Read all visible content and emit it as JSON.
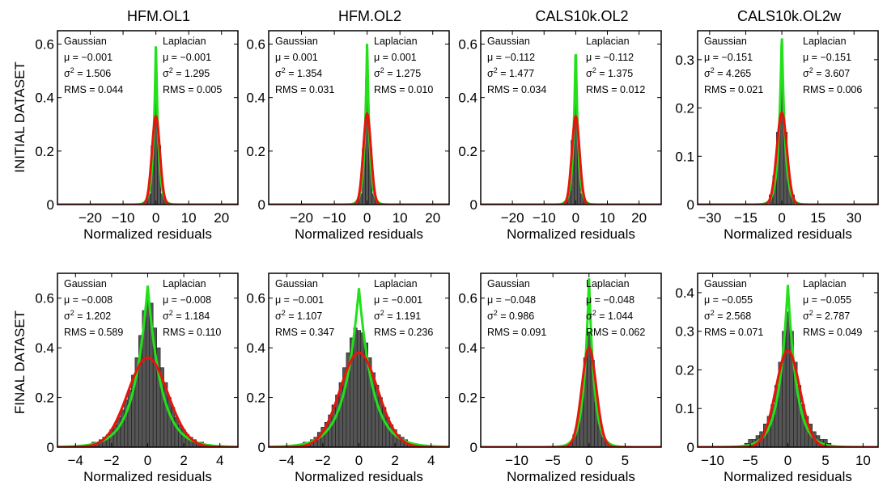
{
  "figure": {
    "column_titles": [
      "HFM.OL1",
      "HFM.OL2",
      "CALS10k.OL2",
      "CALS10k.OL2w"
    ],
    "row_labels": [
      "INITIAL DATASET",
      "FINAL DATASET"
    ],
    "xlabel": "Normalized residuals",
    "stat_labels": {
      "gaussian": "Gaussian",
      "laplacian": "Laplacian"
    },
    "colors": {
      "gaussian_curve": "#e8140c",
      "laplacian_curve": "#22e01a",
      "histogram_bars": "#555555",
      "axes": "#000000"
    }
  },
  "chart_data": [
    {
      "type": "bar",
      "row": "INITIAL DATASET",
      "column": "HFM.OL1",
      "title": "HFM.OL1",
      "xlabel": "Normalized residuals",
      "ylabel": "",
      "xlim": [
        -30,
        25
      ],
      "ylim": [
        0,
        0.65
      ],
      "xticks": [
        -20,
        -10,
        0,
        10,
        20
      ],
      "xtick_labels": [
        "−20",
        "−10",
        "0",
        "10",
        "20"
      ],
      "yticks": [
        0,
        0.2,
        0.4,
        0.6
      ],
      "ytick_labels": [
        "0",
        "0.2",
        "0.4",
        "0.6"
      ],
      "gaussian": {
        "mu": "μ = −0.001",
        "sigma2": "σ2 = 1.506",
        "rms": "RMS = 0.044"
      },
      "laplacian": {
        "mu": "μ = −0.001",
        "sigma2": "σ2 = 1.295",
        "rms": "RMS = 0.005"
      },
      "gaussian_peak": 0.33,
      "laplacian_peak": 0.61,
      "bar_width": 1.0,
      "histogram": [
        [
          -3,
          0.01
        ],
        [
          -2,
          0.04
        ],
        [
          -1,
          0.22
        ],
        [
          0,
          0.45
        ],
        [
          1,
          0.22
        ],
        [
          2,
          0.04
        ],
        [
          3,
          0.01
        ]
      ]
    },
    {
      "type": "bar",
      "row": "INITIAL DATASET",
      "column": "HFM.OL2",
      "title": "HFM.OL2",
      "xlabel": "Normalized residuals",
      "ylabel": "",
      "xlim": [
        -30,
        25
      ],
      "ylim": [
        0,
        0.65
      ],
      "xticks": [
        -20,
        -10,
        0,
        10,
        20
      ],
      "xtick_labels": [
        "−20",
        "−10",
        "0",
        "10",
        "20"
      ],
      "yticks": [
        0,
        0.2,
        0.4,
        0.6
      ],
      "ytick_labels": [
        "0",
        "0.2",
        "0.4",
        "0.6"
      ],
      "gaussian": {
        "mu": "μ = 0.001",
        "sigma2": "σ2 = 1.354",
        "rms": "RMS = 0.031"
      },
      "laplacian": {
        "mu": "μ = 0.001",
        "sigma2": "σ2 = 1.275",
        "rms": "RMS = 0.010"
      },
      "gaussian_peak": 0.34,
      "laplacian_peak": 0.62,
      "bar_width": 1.0,
      "histogram": [
        [
          -3,
          0.01
        ],
        [
          -2,
          0.04
        ],
        [
          -1,
          0.21
        ],
        [
          0,
          0.47
        ],
        [
          1,
          0.21
        ],
        [
          2,
          0.04
        ],
        [
          3,
          0.01
        ]
      ]
    },
    {
      "type": "bar",
      "row": "INITIAL DATASET",
      "column": "CALS10k.OL2",
      "title": "CALS10k.OL2",
      "xlabel": "Normalized residuals",
      "ylabel": "",
      "xlim": [
        -30,
        27
      ],
      "ylim": [
        0,
        0.65
      ],
      "xticks": [
        -20,
        -10,
        0,
        10,
        20
      ],
      "xtick_labels": [
        "−20",
        "−10",
        "0",
        "10",
        "20"
      ],
      "yticks": [
        0,
        0.2,
        0.4,
        0.6
      ],
      "ytick_labels": [
        "0",
        "0.2",
        "0.4",
        "0.6"
      ],
      "gaussian": {
        "mu": "μ = −0.112",
        "sigma2": "σ2 = 1.477",
        "rms": "RMS = 0.034"
      },
      "laplacian": {
        "mu": "μ = −0.112",
        "sigma2": "σ2 = 1.375",
        "rms": "RMS = 0.012"
      },
      "gaussian_peak": 0.33,
      "laplacian_peak": 0.61,
      "bar_width": 1.0,
      "histogram": [
        [
          -3,
          0.01
        ],
        [
          -2,
          0.05
        ],
        [
          -1,
          0.24
        ],
        [
          0,
          0.42
        ],
        [
          1,
          0.2
        ],
        [
          2,
          0.04
        ],
        [
          3,
          0.01
        ]
      ]
    },
    {
      "type": "bar",
      "row": "INITIAL DATASET",
      "column": "CALS10k.OL2w",
      "title": "CALS10k.OL2w",
      "xlabel": "Normalized residuals",
      "ylabel": "",
      "xlim": [
        -35,
        40
      ],
      "ylim": [
        0,
        0.36
      ],
      "xticks": [
        -30,
        -15,
        0,
        15,
        30
      ],
      "xtick_labels": [
        "−30",
        "−15",
        "0",
        "15",
        "30"
      ],
      "yticks": [
        0,
        0.1,
        0.2,
        0.3
      ],
      "ytick_labels": [
        "0",
        "0.1",
        "0.2",
        "0.3"
      ],
      "gaussian": {
        "mu": "μ = −0.151",
        "sigma2": "σ2 = 4.265",
        "rms": "RMS = 0.021"
      },
      "laplacian": {
        "mu": "μ = −0.151",
        "sigma2": "σ2 = 3.607",
        "rms": "RMS = 0.006"
      },
      "gaussian_peak": 0.19,
      "laplacian_peak": 0.36,
      "bar_width": 1.5,
      "histogram": [
        [
          -4.5,
          0.02
        ],
        [
          -3,
          0.06
        ],
        [
          -1.5,
          0.15
        ],
        [
          0,
          0.26
        ],
        [
          1.5,
          0.15
        ],
        [
          3,
          0.05
        ],
        [
          4.5,
          0.02
        ]
      ]
    },
    {
      "type": "bar",
      "row": "FINAL DATASET",
      "column": "HFM.OL1",
      "title": "",
      "xlabel": "Normalized residuals",
      "ylabel": "",
      "xlim": [
        -5,
        5
      ],
      "ylim": [
        0,
        0.7
      ],
      "xticks": [
        -4,
        -2,
        0,
        2,
        4
      ],
      "xtick_labels": [
        "−4",
        "−2",
        "0",
        "2",
        "4"
      ],
      "yticks": [
        0,
        0.2,
        0.4,
        0.6
      ],
      "ytick_labels": [
        "0",
        "0.2",
        "0.4",
        "0.6"
      ],
      "gaussian": {
        "mu": "μ = −0.008",
        "sigma2": "σ2 = 1.202",
        "rms": "RMS = 0.589"
      },
      "laplacian": {
        "mu": "μ = −0.008",
        "sigma2": "σ2 = 1.184",
        "rms": "RMS = 0.110"
      },
      "gaussian_peak": 0.36,
      "laplacian_peak": 0.65,
      "bar_width": 0.2,
      "histogram": [
        [
          -3.4,
          0.01
        ],
        [
          -3.2,
          0.01
        ],
        [
          -3.0,
          0.02
        ],
        [
          -2.8,
          0.02
        ],
        [
          -2.6,
          0.03
        ],
        [
          -2.4,
          0.04
        ],
        [
          -2.2,
          0.05
        ],
        [
          -2.0,
          0.07
        ],
        [
          -1.8,
          0.09
        ],
        [
          -1.6,
          0.12
        ],
        [
          -1.4,
          0.15
        ],
        [
          -1.2,
          0.19
        ],
        [
          -1.0,
          0.23
        ],
        [
          -0.8,
          0.29
        ],
        [
          -0.6,
          0.36
        ],
        [
          -0.4,
          0.45
        ],
        [
          -0.2,
          0.55
        ],
        [
          0.0,
          0.6
        ],
        [
          0.2,
          0.58
        ],
        [
          0.4,
          0.48
        ],
        [
          0.6,
          0.4
        ],
        [
          0.8,
          0.32
        ],
        [
          1.0,
          0.26
        ],
        [
          1.2,
          0.2
        ],
        [
          1.4,
          0.16
        ],
        [
          1.6,
          0.12
        ],
        [
          1.8,
          0.09
        ],
        [
          2.0,
          0.07
        ],
        [
          2.2,
          0.05
        ],
        [
          2.4,
          0.04
        ],
        [
          2.6,
          0.03
        ],
        [
          2.8,
          0.02
        ],
        [
          3.0,
          0.02
        ],
        [
          3.2,
          0.01
        ],
        [
          3.4,
          0.01
        ]
      ]
    },
    {
      "type": "bar",
      "row": "FINAL DATASET",
      "column": "HFM.OL2",
      "title": "",
      "xlabel": "Normalized residuals",
      "ylabel": "",
      "xlim": [
        -5,
        5
      ],
      "ylim": [
        0,
        0.7
      ],
      "xticks": [
        -4,
        -2,
        0,
        2,
        4
      ],
      "xtick_labels": [
        "−4",
        "−2",
        "0",
        "2",
        "4"
      ],
      "yticks": [
        0,
        0.2,
        0.4,
        0.6
      ],
      "ytick_labels": [
        "0",
        "0.2",
        "0.4",
        "0.6"
      ],
      "gaussian": {
        "mu": "μ = −0.001",
        "sigma2": "σ2 = 1.107",
        "rms": "RMS = 0.347"
      },
      "laplacian": {
        "mu": "μ = −0.001",
        "sigma2": "σ2 = 1.191",
        "rms": "RMS = 0.236"
      },
      "gaussian_peak": 0.38,
      "laplacian_peak": 0.64,
      "bar_width": 0.2,
      "histogram": [
        [
          -3.2,
          0.01
        ],
        [
          -3.0,
          0.02
        ],
        [
          -2.8,
          0.02
        ],
        [
          -2.6,
          0.03
        ],
        [
          -2.4,
          0.04
        ],
        [
          -2.2,
          0.06
        ],
        [
          -2.0,
          0.08
        ],
        [
          -1.8,
          0.1
        ],
        [
          -1.6,
          0.13
        ],
        [
          -1.4,
          0.17
        ],
        [
          -1.2,
          0.21
        ],
        [
          -1.0,
          0.26
        ],
        [
          -0.8,
          0.32
        ],
        [
          -0.6,
          0.38
        ],
        [
          -0.4,
          0.44
        ],
        [
          -0.2,
          0.48
        ],
        [
          0.0,
          0.47
        ],
        [
          0.2,
          0.46
        ],
        [
          0.4,
          0.42
        ],
        [
          0.6,
          0.36
        ],
        [
          0.8,
          0.3
        ],
        [
          1.0,
          0.25
        ],
        [
          1.2,
          0.2
        ],
        [
          1.4,
          0.16
        ],
        [
          1.6,
          0.12
        ],
        [
          1.8,
          0.09
        ],
        [
          2.0,
          0.07
        ],
        [
          2.2,
          0.05
        ],
        [
          2.4,
          0.04
        ],
        [
          2.6,
          0.03
        ],
        [
          2.8,
          0.02
        ],
        [
          3.0,
          0.01
        ]
      ]
    },
    {
      "type": "bar",
      "row": "FINAL DATASET",
      "column": "CALS10k.OL2",
      "title": "",
      "xlabel": "Normalized residuals",
      "ylabel": "",
      "xlim": [
        -15,
        10
      ],
      "ylim": [
        0,
        0.7
      ],
      "xticks": [
        -10,
        -5,
        0,
        5
      ],
      "xtick_labels": [
        "−10",
        "−5",
        "0",
        "5"
      ],
      "yticks": [
        0,
        0.2,
        0.4,
        0.6
      ],
      "ytick_labels": [
        "0",
        "0.2",
        "0.4",
        "0.6"
      ],
      "gaussian": {
        "mu": "μ = −0.048",
        "sigma2": "σ2 = 0.986",
        "rms": "RMS = 0.091"
      },
      "laplacian": {
        "mu": "μ = −0.048",
        "sigma2": "σ2 = 1.044",
        "rms": "RMS = 0.062"
      },
      "gaussian_peak": 0.4,
      "laplacian_peak": 0.68,
      "bar_width": 0.5,
      "histogram": [
        [
          -3.0,
          0.01
        ],
        [
          -2.5,
          0.02
        ],
        [
          -2.0,
          0.05
        ],
        [
          -1.5,
          0.1
        ],
        [
          -1.0,
          0.19
        ],
        [
          -0.5,
          0.36
        ],
        [
          0.0,
          0.46
        ],
        [
          0.5,
          0.35
        ],
        [
          1.0,
          0.18
        ],
        [
          1.5,
          0.09
        ],
        [
          2.0,
          0.04
        ],
        [
          2.5,
          0.02
        ],
        [
          3.0,
          0.01
        ]
      ]
    },
    {
      "type": "bar",
      "row": "FINAL DATASET",
      "column": "CALS10k.OL2w",
      "title": "",
      "xlabel": "Normalized residuals",
      "ylabel": "",
      "xlim": [
        -12,
        12
      ],
      "ylim": [
        0,
        0.45
      ],
      "xticks": [
        -10,
        -5,
        0,
        5,
        10
      ],
      "xtick_labels": [
        "−10",
        "−5",
        "0",
        "5",
        "10"
      ],
      "yticks": [
        0,
        0.1,
        0.2,
        0.3,
        0.4
      ],
      "ytick_labels": [
        "0",
        "0.1",
        "0.2",
        "0.3",
        "0.4"
      ],
      "gaussian": {
        "mu": "μ = −0.055",
        "sigma2": "σ2 = 2.568",
        "rms": "RMS = 0.071"
      },
      "laplacian": {
        "mu": "μ = −0.055",
        "sigma2": "σ2 = 2.787",
        "rms": "RMS = 0.049"
      },
      "gaussian_peak": 0.25,
      "laplacian_peak": 0.42,
      "bar_width": 0.5,
      "histogram": [
        [
          -5.5,
          0.01
        ],
        [
          -5.0,
          0.02
        ],
        [
          -4.5,
          0.02
        ],
        [
          -4.0,
          0.03
        ],
        [
          -3.5,
          0.04
        ],
        [
          -3.0,
          0.06
        ],
        [
          -2.5,
          0.08
        ],
        [
          -2.0,
          0.11
        ],
        [
          -1.5,
          0.16
        ],
        [
          -1.0,
          0.22
        ],
        [
          -0.5,
          0.3
        ],
        [
          0.0,
          0.35
        ],
        [
          0.5,
          0.3
        ],
        [
          1.0,
          0.22
        ],
        [
          1.5,
          0.16
        ],
        [
          2.0,
          0.11
        ],
        [
          2.5,
          0.08
        ],
        [
          3.0,
          0.06
        ],
        [
          3.5,
          0.04
        ],
        [
          4.0,
          0.03
        ],
        [
          4.5,
          0.02
        ],
        [
          5.0,
          0.02
        ],
        [
          5.5,
          0.01
        ]
      ]
    }
  ]
}
